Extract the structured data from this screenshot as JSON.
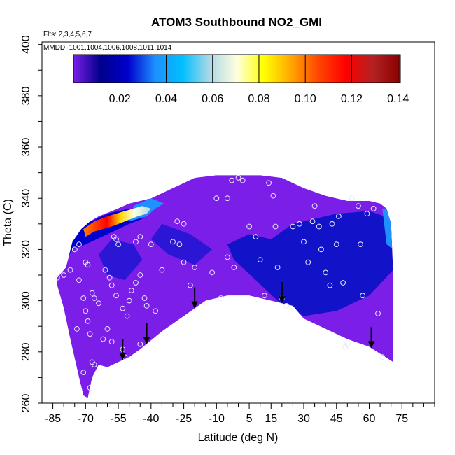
{
  "chart_data": {
    "type": "heatmap",
    "title": "ATOM3 Southbound NO2_GMI",
    "flights_label": "Flts: 2,3,4,5,6,7",
    "mmdd_label": "MMDD: 1001,1004,1006,1008,1011,1014",
    "xlabel": "Latitude (deg N)",
    "ylabel": "Theta (C)",
    "xlim": [
      -90,
      90
    ],
    "ylim": [
      260,
      401
    ],
    "x_ticks": [
      -85,
      -70,
      -55,
      -40,
      -25,
      -10,
      5,
      15,
      30,
      45,
      60,
      75
    ],
    "y_ticks": [
      260,
      280,
      300,
      320,
      340,
      360,
      380,
      400
    ],
    "colorbar": {
      "min": 0.0,
      "max": 0.141,
      "ticks": [
        0.02,
        0.04,
        0.06,
        0.08,
        0.1,
        0.12,
        0.14
      ],
      "tick_labels": [
        "0.02",
        "0.04",
        "0.06",
        "0.08",
        "0.10",
        "0.12",
        "0.14"
      ],
      "colors": [
        "#7a1ee8",
        "#00008b",
        "#0000cd",
        "#1e90ff",
        "#00bfff",
        "#add8e6",
        "#ffffe0",
        "#ffff00",
        "#ffa500",
        "#ff4500",
        "#ff0000",
        "#b22222",
        "#8b0000"
      ]
    },
    "upper_boundary": [
      [
        -83,
        309
      ],
      [
        -79,
        313
      ],
      [
        -76,
        323
      ],
      [
        -72,
        328
      ],
      [
        -68,
        331
      ],
      [
        -64,
        333
      ],
      [
        -58,
        335
      ],
      [
        -50,
        338
      ],
      [
        -40,
        340
      ],
      [
        -30,
        344
      ],
      [
        -20,
        348
      ],
      [
        -10,
        349
      ],
      [
        0,
        349
      ],
      [
        10,
        349
      ],
      [
        20,
        348
      ],
      [
        30,
        344
      ],
      [
        40,
        341
      ],
      [
        50,
        339
      ],
      [
        60,
        339
      ],
      [
        65,
        338
      ],
      [
        68,
        336
      ],
      [
        70,
        330
      ],
      [
        71,
        310
      ]
    ],
    "lower_boundary": [
      [
        71,
        276
      ],
      [
        60,
        282
      ],
      [
        50,
        285
      ],
      [
        40,
        289
      ],
      [
        30,
        293
      ],
      [
        25,
        298
      ],
      [
        15,
        300
      ],
      [
        5,
        302
      ],
      [
        -5,
        302
      ],
      [
        -15,
        300
      ],
      [
        -25,
        294
      ],
      [
        -35,
        288
      ],
      [
        -45,
        281
      ],
      [
        -50,
        278
      ],
      [
        -55,
        276
      ],
      [
        -60,
        274
      ],
      [
        -64,
        275
      ],
      [
        -67,
        270
      ],
      [
        -69,
        262
      ],
      [
        -71,
        263
      ],
      [
        -73,
        270
      ],
      [
        -77,
        285
      ],
      [
        -80,
        297
      ],
      [
        -83,
        306
      ]
    ],
    "high_zone": [
      [
        -70,
        325
      ],
      [
        -66,
        327
      ],
      [
        -58,
        329
      ],
      [
        -52,
        331
      ],
      [
        -46,
        333
      ],
      [
        -42,
        334
      ],
      [
        -40,
        336
      ],
      [
        -44,
        337
      ],
      [
        -52,
        335
      ],
      [
        -60,
        333
      ],
      [
        -66,
        331
      ],
      [
        -71,
        328
      ]
    ],
    "dark_regions": [
      [
        [
          -5,
          322
        ],
        [
          5,
          326
        ],
        [
          15,
          324
        ],
        [
          25,
          330
        ],
        [
          45,
          334
        ],
        [
          60,
          335
        ],
        [
          70,
          332
        ],
        [
          71,
          312
        ],
        [
          60,
          302
        ],
        [
          45,
          296
        ],
        [
          30,
          294
        ],
        [
          18,
          300
        ],
        [
          8,
          308
        ],
        [
          -2,
          316
        ]
      ],
      [
        [
          -35,
          330
        ],
        [
          -22,
          326
        ],
        [
          -12,
          320
        ],
        [
          -20,
          314
        ],
        [
          -32,
          318
        ],
        [
          -40,
          324
        ]
      ],
      [
        [
          -58,
          324
        ],
        [
          -48,
          322
        ],
        [
          -44,
          316
        ],
        [
          -52,
          308
        ],
        [
          -60,
          310
        ],
        [
          -64,
          318
        ]
      ]
    ],
    "points": [
      [
        -83,
        309
      ],
      [
        -80,
        310
      ],
      [
        -77,
        312
      ],
      [
        -73,
        308
      ],
      [
        -71,
        301
      ],
      [
        -70,
        296
      ],
      [
        -69,
        292
      ],
      [
        -68,
        287
      ],
      [
        -67,
        276
      ],
      [
        -66,
        275
      ],
      [
        -68,
        266
      ],
      [
        -71,
        272
      ],
      [
        -74,
        289
      ],
      [
        -75,
        320
      ],
      [
        -73,
        322
      ],
      [
        -70,
        315
      ],
      [
        -69,
        314
      ],
      [
        -67,
        303
      ],
      [
        -66,
        301
      ],
      [
        -64,
        299
      ],
      [
        -62,
        285
      ],
      [
        -60,
        289
      ],
      [
        -58,
        284
      ],
      [
        -61,
        312
      ],
      [
        -59,
        309
      ],
      [
        -58,
        306
      ],
      [
        -56,
        302
      ],
      [
        -55,
        322
      ],
      [
        -56,
        324
      ],
      [
        -57,
        325
      ],
      [
        -53,
        297
      ],
      [
        -51,
        294
      ],
      [
        -50,
        300
      ],
      [
        -49,
        304
      ],
      [
        -47,
        307
      ],
      [
        -45,
        310
      ],
      [
        -43,
        301
      ],
      [
        -42,
        298
      ],
      [
        -40,
        322
      ],
      [
        -45,
        325
      ],
      [
        -47,
        323
      ],
      [
        -53,
        281
      ],
      [
        -52,
        278
      ],
      [
        -45,
        283
      ],
      [
        -38,
        296
      ],
      [
        -35,
        312
      ],
      [
        -30,
        323
      ],
      [
        -27,
        322
      ],
      [
        -25,
        315
      ],
      [
        -22,
        306
      ],
      [
        -20,
        313
      ],
      [
        -25,
        330
      ],
      [
        -28,
        331
      ],
      [
        -12,
        311
      ],
      [
        -8,
        301
      ],
      [
        -5,
        317
      ],
      [
        -2,
        313
      ],
      [
        -10,
        340
      ],
      [
        -5,
        340
      ],
      [
        -3,
        347
      ],
      [
        0,
        348
      ],
      [
        2,
        347
      ],
      [
        5,
        329
      ],
      [
        8,
        325
      ],
      [
        10,
        316
      ],
      [
        12,
        302
      ],
      [
        14,
        346
      ],
      [
        16,
        341
      ],
      [
        17,
        329
      ],
      [
        18,
        313
      ],
      [
        20,
        301
      ],
      [
        22,
        298
      ],
      [
        25,
        329
      ],
      [
        28,
        330
      ],
      [
        30,
        323
      ],
      [
        32,
        315
      ],
      [
        34,
        331
      ],
      [
        35,
        337
      ],
      [
        37,
        329
      ],
      [
        38,
        320
      ],
      [
        40,
        311
      ],
      [
        42,
        306
      ],
      [
        43,
        330
      ],
      [
        45,
        322
      ],
      [
        46,
        333
      ],
      [
        48,
        307
      ],
      [
        49,
        282
      ],
      [
        50,
        283
      ],
      [
        52,
        340
      ],
      [
        55,
        337
      ],
      [
        56,
        322
      ],
      [
        57,
        302
      ],
      [
        59,
        334
      ],
      [
        62,
        336
      ],
      [
        64,
        295
      ],
      [
        66,
        278
      ]
    ],
    "arrows_x": [
      -53,
      -42,
      -20,
      20,
      61
    ]
  }
}
